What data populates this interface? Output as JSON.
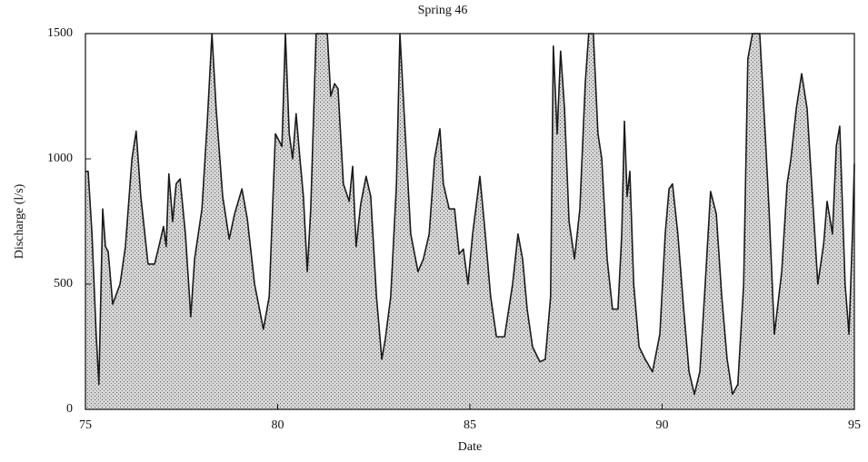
{
  "chart_data": {
    "type": "area",
    "title": "Spring 46",
    "xlabel": "Date",
    "ylabel": "Discharge (l/s)",
    "fill_color": "#b4b4b4",
    "line_color": "#1a1a1a",
    "xlim": [
      75,
      95
    ],
    "ylim": [
      0,
      1500
    ],
    "xticks": [
      75,
      80,
      85,
      90,
      95
    ],
    "yticks": [
      0,
      500,
      1000,
      1500
    ],
    "x": [
      75.0,
      75.07,
      75.17,
      75.28,
      75.35,
      75.45,
      75.52,
      75.59,
      75.71,
      75.9,
      76.04,
      76.21,
      76.32,
      76.44,
      76.63,
      76.8,
      76.91,
      77.03,
      77.1,
      77.17,
      77.27,
      77.36,
      77.46,
      77.6,
      77.74,
      77.84,
      78.03,
      78.17,
      78.29,
      78.4,
      78.57,
      78.74,
      78.88,
      79.07,
      79.21,
      79.4,
      79.63,
      79.78,
      79.94,
      80.11,
      80.2,
      80.3,
      80.39,
      80.48,
      80.58,
      80.67,
      80.77,
      80.86,
      81.0,
      81.29,
      81.38,
      81.48,
      81.57,
      81.71,
      81.86,
      81.95,
      82.04,
      82.16,
      82.3,
      82.42,
      82.57,
      82.71,
      82.8,
      82.94,
      83.09,
      83.18,
      83.32,
      83.46,
      83.65,
      83.79,
      83.94,
      84.08,
      84.22,
      84.31,
      84.46,
      84.6,
      84.72,
      84.83,
      84.95,
      85.07,
      85.26,
      85.4,
      85.54,
      85.69,
      85.9,
      86.11,
      86.25,
      86.37,
      86.49,
      86.63,
      86.82,
      86.96,
      87.1,
      87.17,
      87.27,
      87.36,
      87.46,
      87.58,
      87.72,
      87.86,
      88.0,
      88.09,
      88.21,
      88.33,
      88.43,
      88.57,
      88.71,
      88.85,
      88.95,
      89.02,
      89.09,
      89.16,
      89.26,
      89.4,
      89.56,
      89.75,
      89.94,
      90.08,
      90.18,
      90.27,
      90.41,
      90.56,
      90.7,
      90.84,
      90.98,
      91.12,
      91.26,
      91.41,
      91.55,
      91.69,
      91.83,
      91.97,
      92.12,
      92.23,
      92.35,
      92.54,
      92.68,
      92.78,
      92.92,
      93.11,
      93.25,
      93.35,
      93.49,
      93.63,
      93.77,
      93.91,
      94.05,
      94.2,
      94.29,
      94.43,
      94.53,
      94.62,
      94.76,
      94.86,
      94.95,
      95.0
    ],
    "values": [
      950,
      950,
      700,
      300,
      100,
      800,
      650,
      630,
      420,
      500,
      650,
      1000,
      1110,
      850,
      580,
      580,
      650,
      730,
      650,
      940,
      750,
      900,
      920,
      700,
      370,
      600,
      800,
      1150,
      1500,
      1200,
      850,
      680,
      780,
      880,
      760,
      500,
      320,
      450,
      1100,
      1050,
      1500,
      1100,
      1000,
      1180,
      1000,
      850,
      550,
      800,
      1500,
      1500,
      1250,
      1300,
      1280,
      900,
      830,
      970,
      650,
      820,
      930,
      850,
      450,
      200,
      280,
      450,
      900,
      1500,
      1100,
      700,
      550,
      600,
      700,
      1000,
      1120,
      900,
      800,
      800,
      620,
      640,
      500,
      700,
      930,
      700,
      450,
      290,
      290,
      500,
      700,
      600,
      400,
      250,
      190,
      200,
      450,
      1450,
      1100,
      1430,
      1200,
      750,
      600,
      800,
      1300,
      1500,
      1500,
      1100,
      1000,
      600,
      400,
      400,
      700,
      1150,
      850,
      950,
      500,
      250,
      200,
      150,
      300,
      700,
      880,
      900,
      700,
      400,
      150,
      60,
      150,
      500,
      870,
      780,
      450,
      200,
      60,
      100,
      500,
      1400,
      1500,
      1500,
      1100,
      800,
      300,
      550,
      900,
      1000,
      1200,
      1340,
      1200,
      850,
      500,
      660,
      830,
      700,
      1050,
      1130,
      500,
      300,
      700,
      980
    ]
  }
}
